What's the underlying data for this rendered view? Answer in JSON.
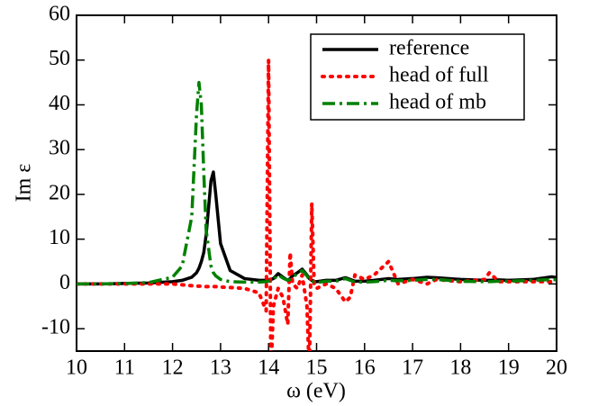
{
  "chart_data": {
    "type": "line",
    "x_label": "ω (eV)",
    "y_label": "Im ε",
    "xlim": [
      10,
      20
    ],
    "xticks": [
      10,
      11,
      12,
      13,
      14,
      15,
      16,
      17,
      18,
      19,
      20
    ],
    "ylim": [
      -15,
      60
    ],
    "yticks": [
      -10,
      0,
      10,
      20,
      30,
      40,
      50,
      60
    ],
    "legend": "upper right",
    "x": [
      10,
      10.5,
      11,
      11.5,
      12,
      12.2,
      12.4,
      12.5,
      12.55,
      12.6,
      12.65,
      12.7,
      12.8,
      12.85,
      12.9,
      13.0,
      13.2,
      13.5,
      13.8,
      13.95,
      14.0,
      14.05,
      14.1,
      14.2,
      14.3,
      14.4,
      14.45,
      14.5,
      14.6,
      14.7,
      14.8,
      14.85,
      14.9,
      14.95,
      15.0,
      15.2,
      15.4,
      15.6,
      15.7,
      15.8,
      16.0,
      16.2,
      16.5,
      16.7,
      17.0,
      17.3,
      17.5,
      18.0,
      18.5,
      18.6,
      18.8,
      19.0,
      19.5,
      19.9,
      20.0
    ],
    "series": [
      {
        "name": "reference",
        "color": "#000000",
        "style": "solid",
        "values": [
          0,
          0,
          0.1,
          0.2,
          0.5,
          0.8,
          1.5,
          2.5,
          3.5,
          5,
          7,
          11,
          23,
          25,
          20,
          9,
          3,
          1.2,
          0.8,
          0.8,
          0.9,
          1,
          1.2,
          2.3,
          1.5,
          0.8,
          1.2,
          1.8,
          2.5,
          3.3,
          2,
          1.2,
          0.8,
          0.6,
          0.5,
          0.8,
          0.8,
          1.4,
          1,
          0.6,
          0.6,
          0.8,
          1.2,
          1,
          1.2,
          1.5,
          1.4,
          1,
          0.8,
          0.8,
          0.9,
          0.8,
          1,
          1.6,
          1.4
        ]
      },
      {
        "name": "head of full",
        "color": "#ff0000",
        "style": "dotted",
        "values": [
          0,
          0,
          0,
          0,
          0,
          -0.2,
          -0.4,
          -0.5,
          -0.5,
          -0.5,
          -0.5,
          -0.6,
          -0.6,
          -0.6,
          -0.6,
          -0.7,
          -0.8,
          -1,
          -2,
          -6,
          50,
          -20,
          -5,
          -1,
          -3,
          -9,
          7,
          0,
          -1,
          2,
          -5,
          -20,
          18,
          0,
          -1,
          0,
          -1,
          -4,
          -3,
          2,
          1,
          2,
          5,
          0,
          1,
          0,
          1,
          0.5,
          1,
          2.5,
          0.5,
          0.5,
          0.5,
          0.5,
          0.5
        ]
      },
      {
        "name": "head of mb",
        "color": "#008000",
        "style": "dashdot",
        "values": [
          0,
          0,
          0.1,
          0.3,
          1.5,
          4,
          15,
          38,
          45,
          40,
          25,
          12,
          4,
          2.5,
          1.8,
          1,
          0.5,
          0.4,
          0.4,
          0.5,
          0.6,
          0.8,
          1,
          2,
          1.3,
          0.8,
          1,
          1.5,
          2.3,
          3,
          1.8,
          1,
          0.6,
          0.4,
          0.3,
          0.6,
          0.6,
          1.2,
          0.8,
          0.4,
          0.4,
          0.5,
          0.8,
          0.7,
          0.8,
          1,
          1,
          0.6,
          0.5,
          0.5,
          0.6,
          0.6,
          0.8,
          1,
          0.9
        ]
      }
    ]
  }
}
